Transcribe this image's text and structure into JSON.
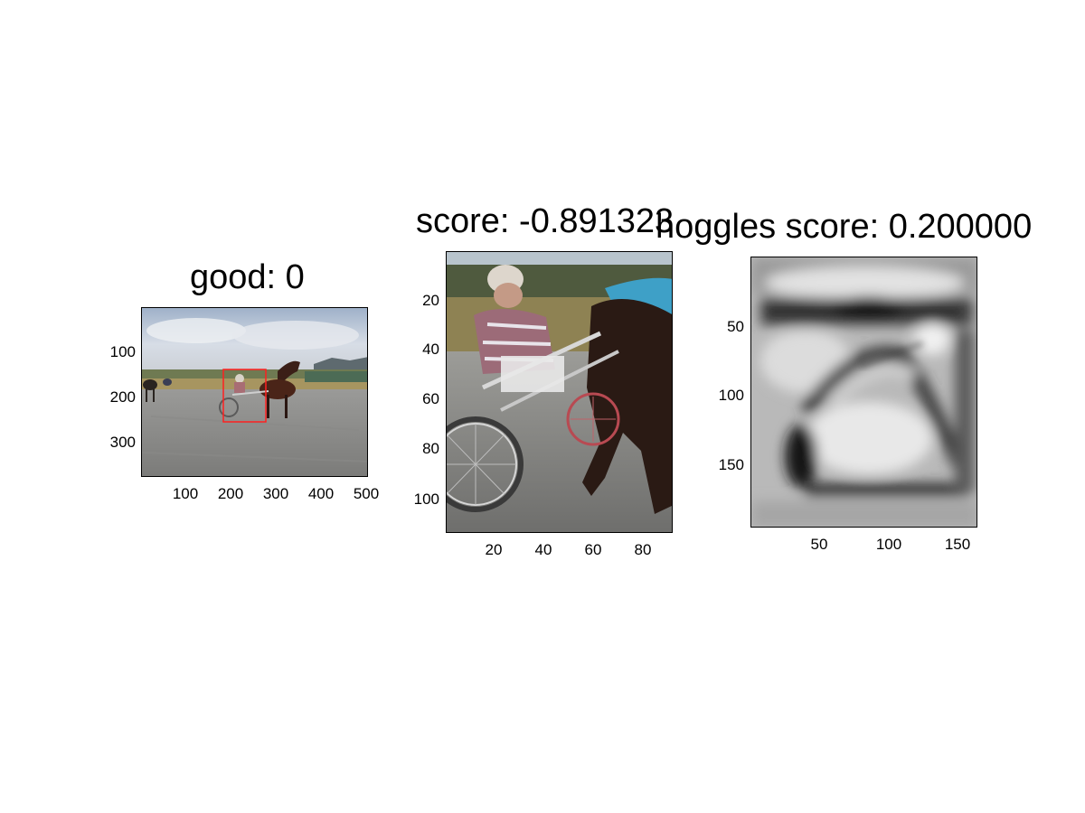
{
  "panels": [
    {
      "title": "good: 0",
      "image": "racetrack-photo-with-red-detection-box",
      "x_ticks": [
        "100",
        "200",
        "300",
        "400",
        "500"
      ],
      "y_ticks": [
        "100",
        "200",
        "300"
      ]
    },
    {
      "title": "score: -0.891323",
      "image": "cropped-harness-driver-and-horse",
      "x_ticks": [
        "20",
        "40",
        "60",
        "80"
      ],
      "y_ticks": [
        "20",
        "40",
        "60",
        "80",
        "100"
      ]
    },
    {
      "title": "hoggles score: 0.200000",
      "image": "grayscale-hog-inverse-visualization",
      "x_ticks": [
        "50",
        "100",
        "150"
      ],
      "y_ticks": [
        "50",
        "100",
        "150"
      ]
    }
  ],
  "colors": {
    "box": "#ff2020",
    "background": "#ffffff"
  }
}
